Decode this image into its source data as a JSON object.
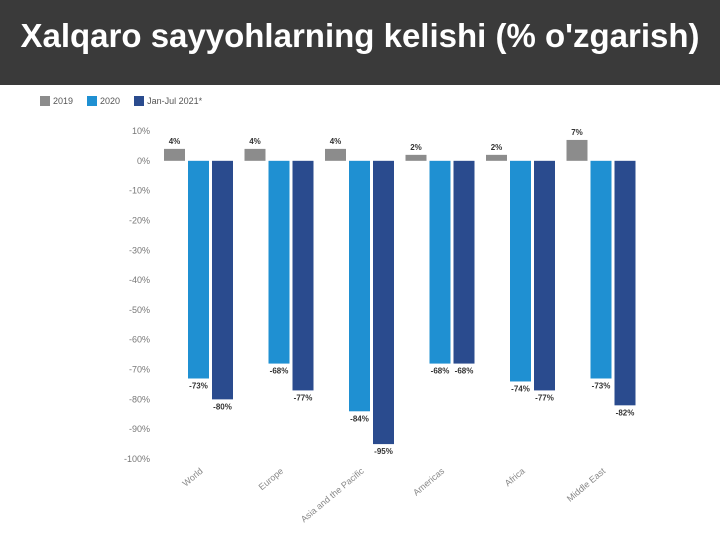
{
  "slide": {
    "title": "Xalqaro sayyohlarning kelishi (% o'zgarish)"
  },
  "colors": {
    "background": "#3a3a3a",
    "panel": "#ffffff",
    "series_2019": "#8c8c8c",
    "series_2020": "#1f90d2",
    "series_2021": "#2a4b8e"
  },
  "chart_data": {
    "type": "bar",
    "title": "",
    "xlabel": "",
    "ylabel": "",
    "categories": [
      "World",
      "Europe",
      "Asia and the Pacific",
      "Americas",
      "Africa",
      "Middle East"
    ],
    "series": [
      {
        "name": "2019",
        "values": [
          4,
          4,
          4,
          2,
          2,
          7
        ],
        "color": "#8c8c8c"
      },
      {
        "name": "2020",
        "values": [
          -73,
          -68,
          -84,
          -68,
          -74,
          -73
        ],
        "color": "#1f90d2"
      },
      {
        "name": "Jan-Jul 2021*",
        "values": [
          -80,
          -77,
          -95,
          -68,
          -77,
          -82
        ],
        "color": "#2a4b8e"
      }
    ],
    "ylim": [
      -100,
      10
    ],
    "yticks": [
      10,
      0,
      -10,
      -20,
      -30,
      -40,
      -50,
      -60,
      -70,
      -80,
      -90,
      -100
    ],
    "tick_suffix": "%",
    "value_suffix": "%",
    "legend_position": "top-left",
    "grid": false
  }
}
